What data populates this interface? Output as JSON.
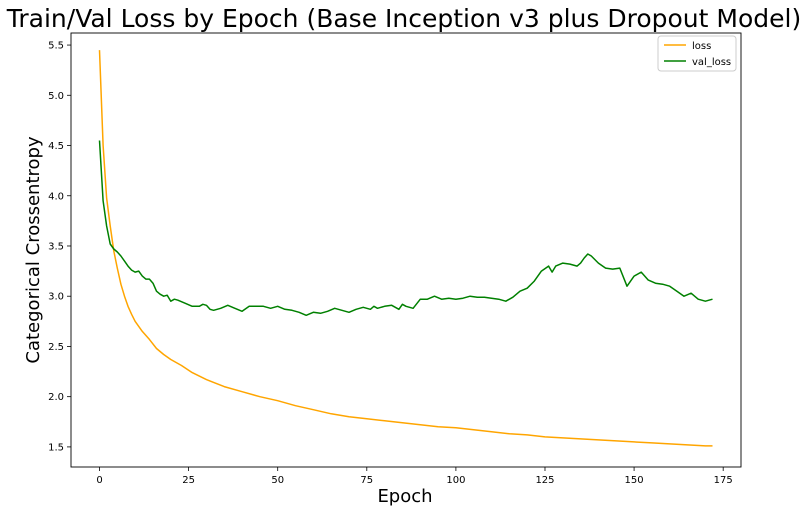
{
  "chart_data": {
    "type": "line",
    "title": "Train/Val Loss by Epoch (Base Inception v3 plus Dropout Model)",
    "xlabel": "Epoch",
    "ylabel": "Categorical Crossentropy",
    "xlim": [
      -8,
      180
    ],
    "ylim": [
      1.3,
      5.62
    ],
    "xticks": [
      0,
      25,
      50,
      75,
      100,
      125,
      150,
      175
    ],
    "yticks": [
      1.5,
      2.0,
      2.5,
      3.0,
      3.5,
      4.0,
      4.5,
      5.0,
      5.5
    ],
    "grid": false,
    "legend_position": "top-right",
    "series": [
      {
        "name": "loss",
        "color": "#ffa500",
        "x": [
          0,
          1,
          2,
          3,
          4,
          5,
          6,
          7,
          8,
          9,
          10,
          12,
          14,
          16,
          18,
          20,
          23,
          26,
          30,
          35,
          40,
          45,
          50,
          55,
          60,
          65,
          70,
          75,
          80,
          85,
          90,
          95,
          100,
          105,
          110,
          115,
          120,
          125,
          130,
          135,
          140,
          145,
          150,
          155,
          160,
          165,
          170,
          172
        ],
        "y": [
          5.45,
          4.5,
          3.98,
          3.7,
          3.45,
          3.28,
          3.12,
          3.0,
          2.9,
          2.82,
          2.75,
          2.65,
          2.57,
          2.48,
          2.42,
          2.37,
          2.31,
          2.24,
          2.17,
          2.1,
          2.05,
          2.0,
          1.96,
          1.91,
          1.87,
          1.83,
          1.8,
          1.78,
          1.76,
          1.74,
          1.72,
          1.7,
          1.69,
          1.67,
          1.65,
          1.63,
          1.62,
          1.6,
          1.59,
          1.58,
          1.57,
          1.56,
          1.55,
          1.54,
          1.53,
          1.52,
          1.51,
          1.51
        ]
      },
      {
        "name": "val_loss",
        "color": "#008000",
        "x": [
          0,
          1,
          2,
          3,
          4,
          5,
          6,
          7,
          8,
          9,
          10,
          11,
          12,
          13,
          14,
          15,
          16,
          17,
          18,
          19,
          20,
          21,
          22,
          24,
          26,
          28,
          29,
          30,
          31,
          32,
          34,
          36,
          38,
          40,
          42,
          44,
          46,
          48,
          50,
          52,
          54,
          56,
          58,
          60,
          62,
          64,
          66,
          68,
          70,
          72,
          74,
          76,
          77,
          78,
          80,
          82,
          84,
          85,
          86,
          88,
          90,
          92,
          94,
          96,
          98,
          100,
          102,
          104,
          106,
          108,
          110,
          112,
          114,
          116,
          118,
          120,
          122,
          124,
          126,
          127,
          128,
          130,
          132,
          134,
          135,
          136,
          137,
          138,
          140,
          142,
          144,
          146,
          148,
          150,
          152,
          154,
          156,
          158,
          160,
          162,
          164,
          166,
          168,
          170,
          172
        ],
        "y": [
          4.55,
          3.95,
          3.7,
          3.52,
          3.47,
          3.44,
          3.4,
          3.35,
          3.3,
          3.26,
          3.24,
          3.25,
          3.2,
          3.17,
          3.17,
          3.13,
          3.05,
          3.02,
          3.0,
          3.01,
          2.95,
          2.97,
          2.96,
          2.93,
          2.9,
          2.9,
          2.92,
          2.91,
          2.87,
          2.86,
          2.88,
          2.91,
          2.88,
          2.85,
          2.9,
          2.9,
          2.9,
          2.88,
          2.9,
          2.87,
          2.86,
          2.84,
          2.81,
          2.84,
          2.83,
          2.85,
          2.88,
          2.86,
          2.84,
          2.87,
          2.89,
          2.87,
          2.9,
          2.88,
          2.9,
          2.91,
          2.87,
          2.92,
          2.9,
          2.88,
          2.97,
          2.97,
          3.0,
          2.97,
          2.98,
          2.97,
          2.98,
          3.0,
          2.99,
          2.99,
          2.98,
          2.97,
          2.95,
          2.99,
          3.05,
          3.08,
          3.15,
          3.25,
          3.3,
          3.24,
          3.3,
          3.33,
          3.32,
          3.3,
          3.33,
          3.38,
          3.42,
          3.4,
          3.33,
          3.28,
          3.27,
          3.28,
          3.1,
          3.2,
          3.24,
          3.16,
          3.13,
          3.12,
          3.1,
          3.05,
          3.0,
          3.03,
          2.97,
          2.95,
          2.97
        ]
      }
    ]
  }
}
